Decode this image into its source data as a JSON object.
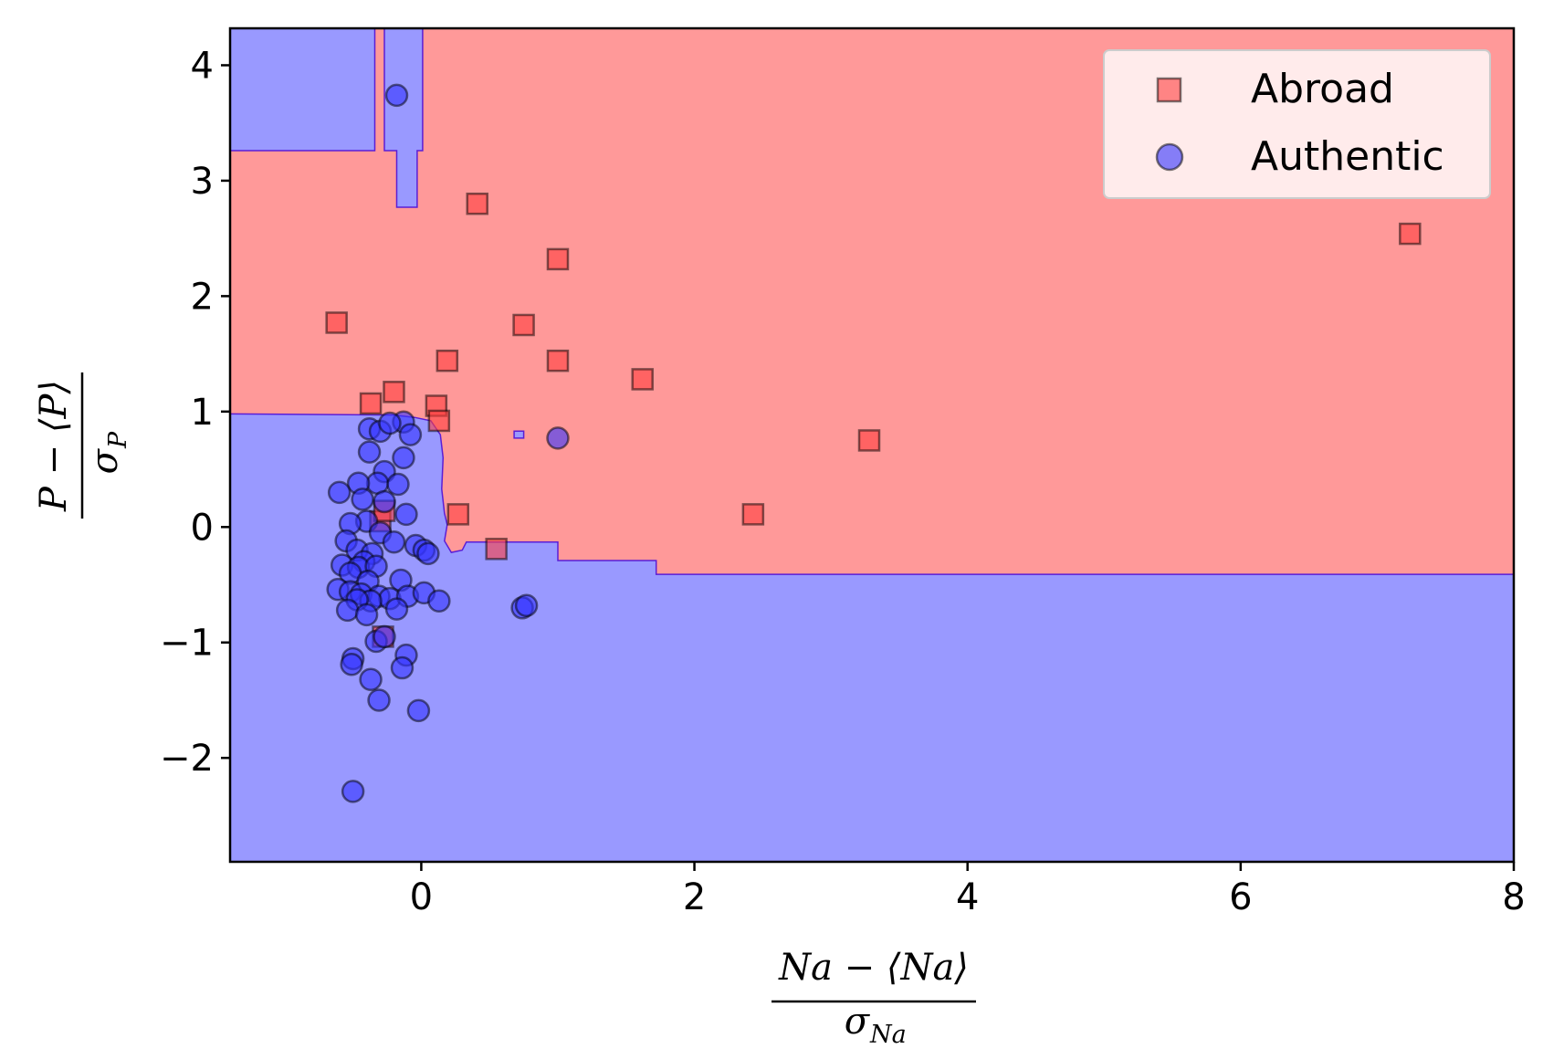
{
  "chart_data": {
    "type": "scatter",
    "xlim": [
      -1.4,
      8.0
    ],
    "ylim": [
      -2.9,
      4.32
    ],
    "xticks": [
      0,
      2,
      4,
      6,
      8
    ],
    "yticks": [
      -2,
      -1,
      0,
      1,
      2,
      3,
      4
    ],
    "xtick_labels": [
      "0",
      "2",
      "4",
      "6",
      "8"
    ],
    "ytick_labels": [
      "−2",
      "−1",
      "0",
      "1",
      "2",
      "3",
      "4"
    ],
    "xlabel": {
      "num": "Na − ⟨Na⟩",
      "den_sym": "σ",
      "den_sub": "Na"
    },
    "ylabel": {
      "num": "P − ⟨P⟩",
      "den_sym": "σ",
      "den_sub": "P"
    },
    "grid": false,
    "legend_position": "top-right",
    "regions": {
      "Abroad_color": "#ff9999",
      "Authentic_color": "#9999ff",
      "boundary_color": "#5b1ed6",
      "Authentic_polygons": [
        [
          [
            -1.4,
            -2.9
          ],
          [
            8.0,
            -2.9
          ],
          [
            8.0,
            -0.41
          ],
          [
            1.72,
            -0.41
          ],
          [
            1.72,
            -0.29
          ],
          [
            1.0,
            -0.29
          ],
          [
            1.0,
            -0.13
          ],
          [
            0.33,
            -0.13
          ],
          [
            0.3,
            -0.2
          ],
          [
            0.22,
            -0.22
          ],
          [
            0.17,
            -0.12
          ],
          [
            0.19,
            0.02
          ],
          [
            0.17,
            0.12
          ],
          [
            0.15,
            0.33
          ],
          [
            0.16,
            0.6
          ],
          [
            0.14,
            0.8
          ],
          [
            0.07,
            0.92
          ],
          [
            -0.05,
            0.95
          ],
          [
            -0.2,
            0.97
          ],
          [
            -1.4,
            0.98
          ]
        ],
        [
          [
            -1.4,
            3.26
          ],
          [
            -0.34,
            3.26
          ],
          [
            -0.34,
            4.32
          ],
          [
            -1.4,
            4.32
          ]
        ],
        [
          [
            -0.27,
            3.26
          ],
          [
            -0.18,
            3.26
          ],
          [
            -0.18,
            2.77
          ],
          [
            -0.03,
            2.77
          ],
          [
            -0.03,
            3.26
          ],
          [
            0.01,
            3.26
          ],
          [
            0.01,
            4.32
          ],
          [
            -0.27,
            4.32
          ]
        ],
        [
          [
            0.68,
            0.77
          ],
          [
            0.75,
            0.77
          ],
          [
            0.75,
            0.83
          ],
          [
            0.68,
            0.83
          ]
        ]
      ]
    },
    "series": [
      {
        "name": "Abroad",
        "marker": "square",
        "color": "#ff4040",
        "points": [
          [
            -0.62,
            1.77
          ],
          [
            0.41,
            2.8
          ],
          [
            1.0,
            2.32
          ],
          [
            0.75,
            1.75
          ],
          [
            0.19,
            1.44
          ],
          [
            1.0,
            1.44
          ],
          [
            1.62,
            1.28
          ],
          [
            -0.2,
            1.17
          ],
          [
            -0.37,
            1.07
          ],
          [
            0.11,
            1.05
          ],
          [
            0.13,
            0.92
          ],
          [
            3.28,
            0.75
          ],
          [
            0.27,
            0.11
          ],
          [
            2.43,
            0.11
          ],
          [
            0.55,
            -0.19
          ],
          [
            -0.3,
            0.05
          ],
          [
            -0.27,
            0.14
          ],
          [
            -0.28,
            -0.95
          ],
          [
            7.24,
            2.54
          ]
        ]
      },
      {
        "name": "Authentic",
        "marker": "circle",
        "color": "#3333ff",
        "points": [
          [
            -0.18,
            3.74
          ],
          [
            1.0,
            0.77
          ],
          [
            -0.38,
            0.85
          ],
          [
            -0.3,
            0.83
          ],
          [
            -0.13,
            0.91
          ],
          [
            -0.23,
            0.9
          ],
          [
            -0.08,
            0.8
          ],
          [
            -0.38,
            0.65
          ],
          [
            -0.13,
            0.6
          ],
          [
            -0.27,
            0.48
          ],
          [
            -0.32,
            0.38
          ],
          [
            -0.17,
            0.37
          ],
          [
            -0.46,
            0.38
          ],
          [
            -0.6,
            0.3
          ],
          [
            -0.43,
            0.24
          ],
          [
            -0.27,
            0.22
          ],
          [
            -0.11,
            0.11
          ],
          [
            -0.4,
            0.05
          ],
          [
            -0.52,
            0.03
          ],
          [
            -0.3,
            -0.05
          ],
          [
            -0.55,
            -0.12
          ],
          [
            -0.2,
            -0.13
          ],
          [
            -0.47,
            -0.2
          ],
          [
            -0.04,
            -0.16
          ],
          [
            0.02,
            -0.2
          ],
          [
            0.05,
            -0.23
          ],
          [
            -0.36,
            -0.23
          ],
          [
            -0.42,
            -0.3
          ],
          [
            -0.58,
            -0.33
          ],
          [
            -0.46,
            -0.35
          ],
          [
            -0.33,
            -0.34
          ],
          [
            -0.52,
            -0.4
          ],
          [
            -0.15,
            -0.46
          ],
          [
            -0.39,
            -0.47
          ],
          [
            -0.61,
            -0.54
          ],
          [
            -0.52,
            -0.56
          ],
          [
            -0.44,
            -0.58
          ],
          [
            -0.31,
            -0.6
          ],
          [
            -0.23,
            -0.62
          ],
          [
            -0.1,
            -0.6
          ],
          [
            0.02,
            -0.57
          ],
          [
            -0.37,
            -0.64
          ],
          [
            -0.47,
            -0.63
          ],
          [
            0.13,
            -0.64
          ],
          [
            -0.54,
            -0.72
          ],
          [
            -0.4,
            -0.76
          ],
          [
            -0.18,
            -0.71
          ],
          [
            0.74,
            -0.7
          ],
          [
            0.77,
            -0.68
          ],
          [
            -0.33,
            -0.99
          ],
          [
            -0.27,
            -0.95
          ],
          [
            -0.5,
            -1.14
          ],
          [
            -0.11,
            -1.11
          ],
          [
            -0.51,
            -1.19
          ],
          [
            -0.14,
            -1.22
          ],
          [
            -0.37,
            -1.32
          ],
          [
            -0.31,
            -1.5
          ],
          [
            -0.02,
            -1.59
          ],
          [
            -0.5,
            -2.29
          ]
        ]
      }
    ]
  },
  "legend": {
    "items": [
      {
        "label": "Abroad",
        "marker": "square",
        "color": "#ff4040"
      },
      {
        "label": "Authentic",
        "marker": "circle",
        "color": "#3333ff"
      }
    ]
  }
}
